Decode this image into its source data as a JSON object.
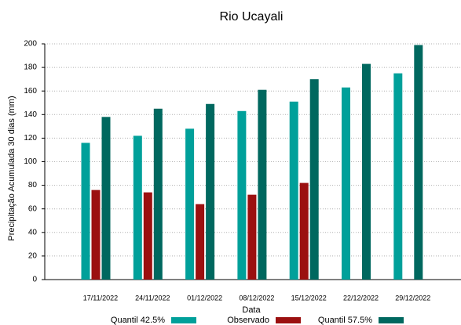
{
  "chart_data": {
    "type": "bar",
    "title": "Rio Ucayali",
    "x_label": "Data",
    "y_label": "Precipitação Acumulada 30 dias (mm)",
    "categories": [
      "17/11/2022",
      "24/11/2022",
      "01/12/2022",
      "08/12/2022",
      "15/12/2022",
      "22/12/2022",
      "29/12/2022"
    ],
    "series": [
      {
        "name": "Quantil 42.5%",
        "color": "#00a09a",
        "values": [
          116,
          122,
          128,
          143,
          151,
          163,
          175
        ]
      },
      {
        "name": "Observado",
        "color": "#9b1010",
        "values": [
          76,
          74,
          64,
          72,
          82,
          null,
          null
        ]
      },
      {
        "name": "Quantil 57.5%",
        "color": "#00685f",
        "values": [
          138,
          145,
          149,
          161,
          170,
          183,
          199
        ]
      }
    ],
    "ylim": [
      0,
      200
    ],
    "yticks": [
      0,
      20,
      40,
      60,
      80,
      100,
      120,
      140,
      160,
      180,
      200
    ],
    "grid": true,
    "legend": "bottom"
  }
}
